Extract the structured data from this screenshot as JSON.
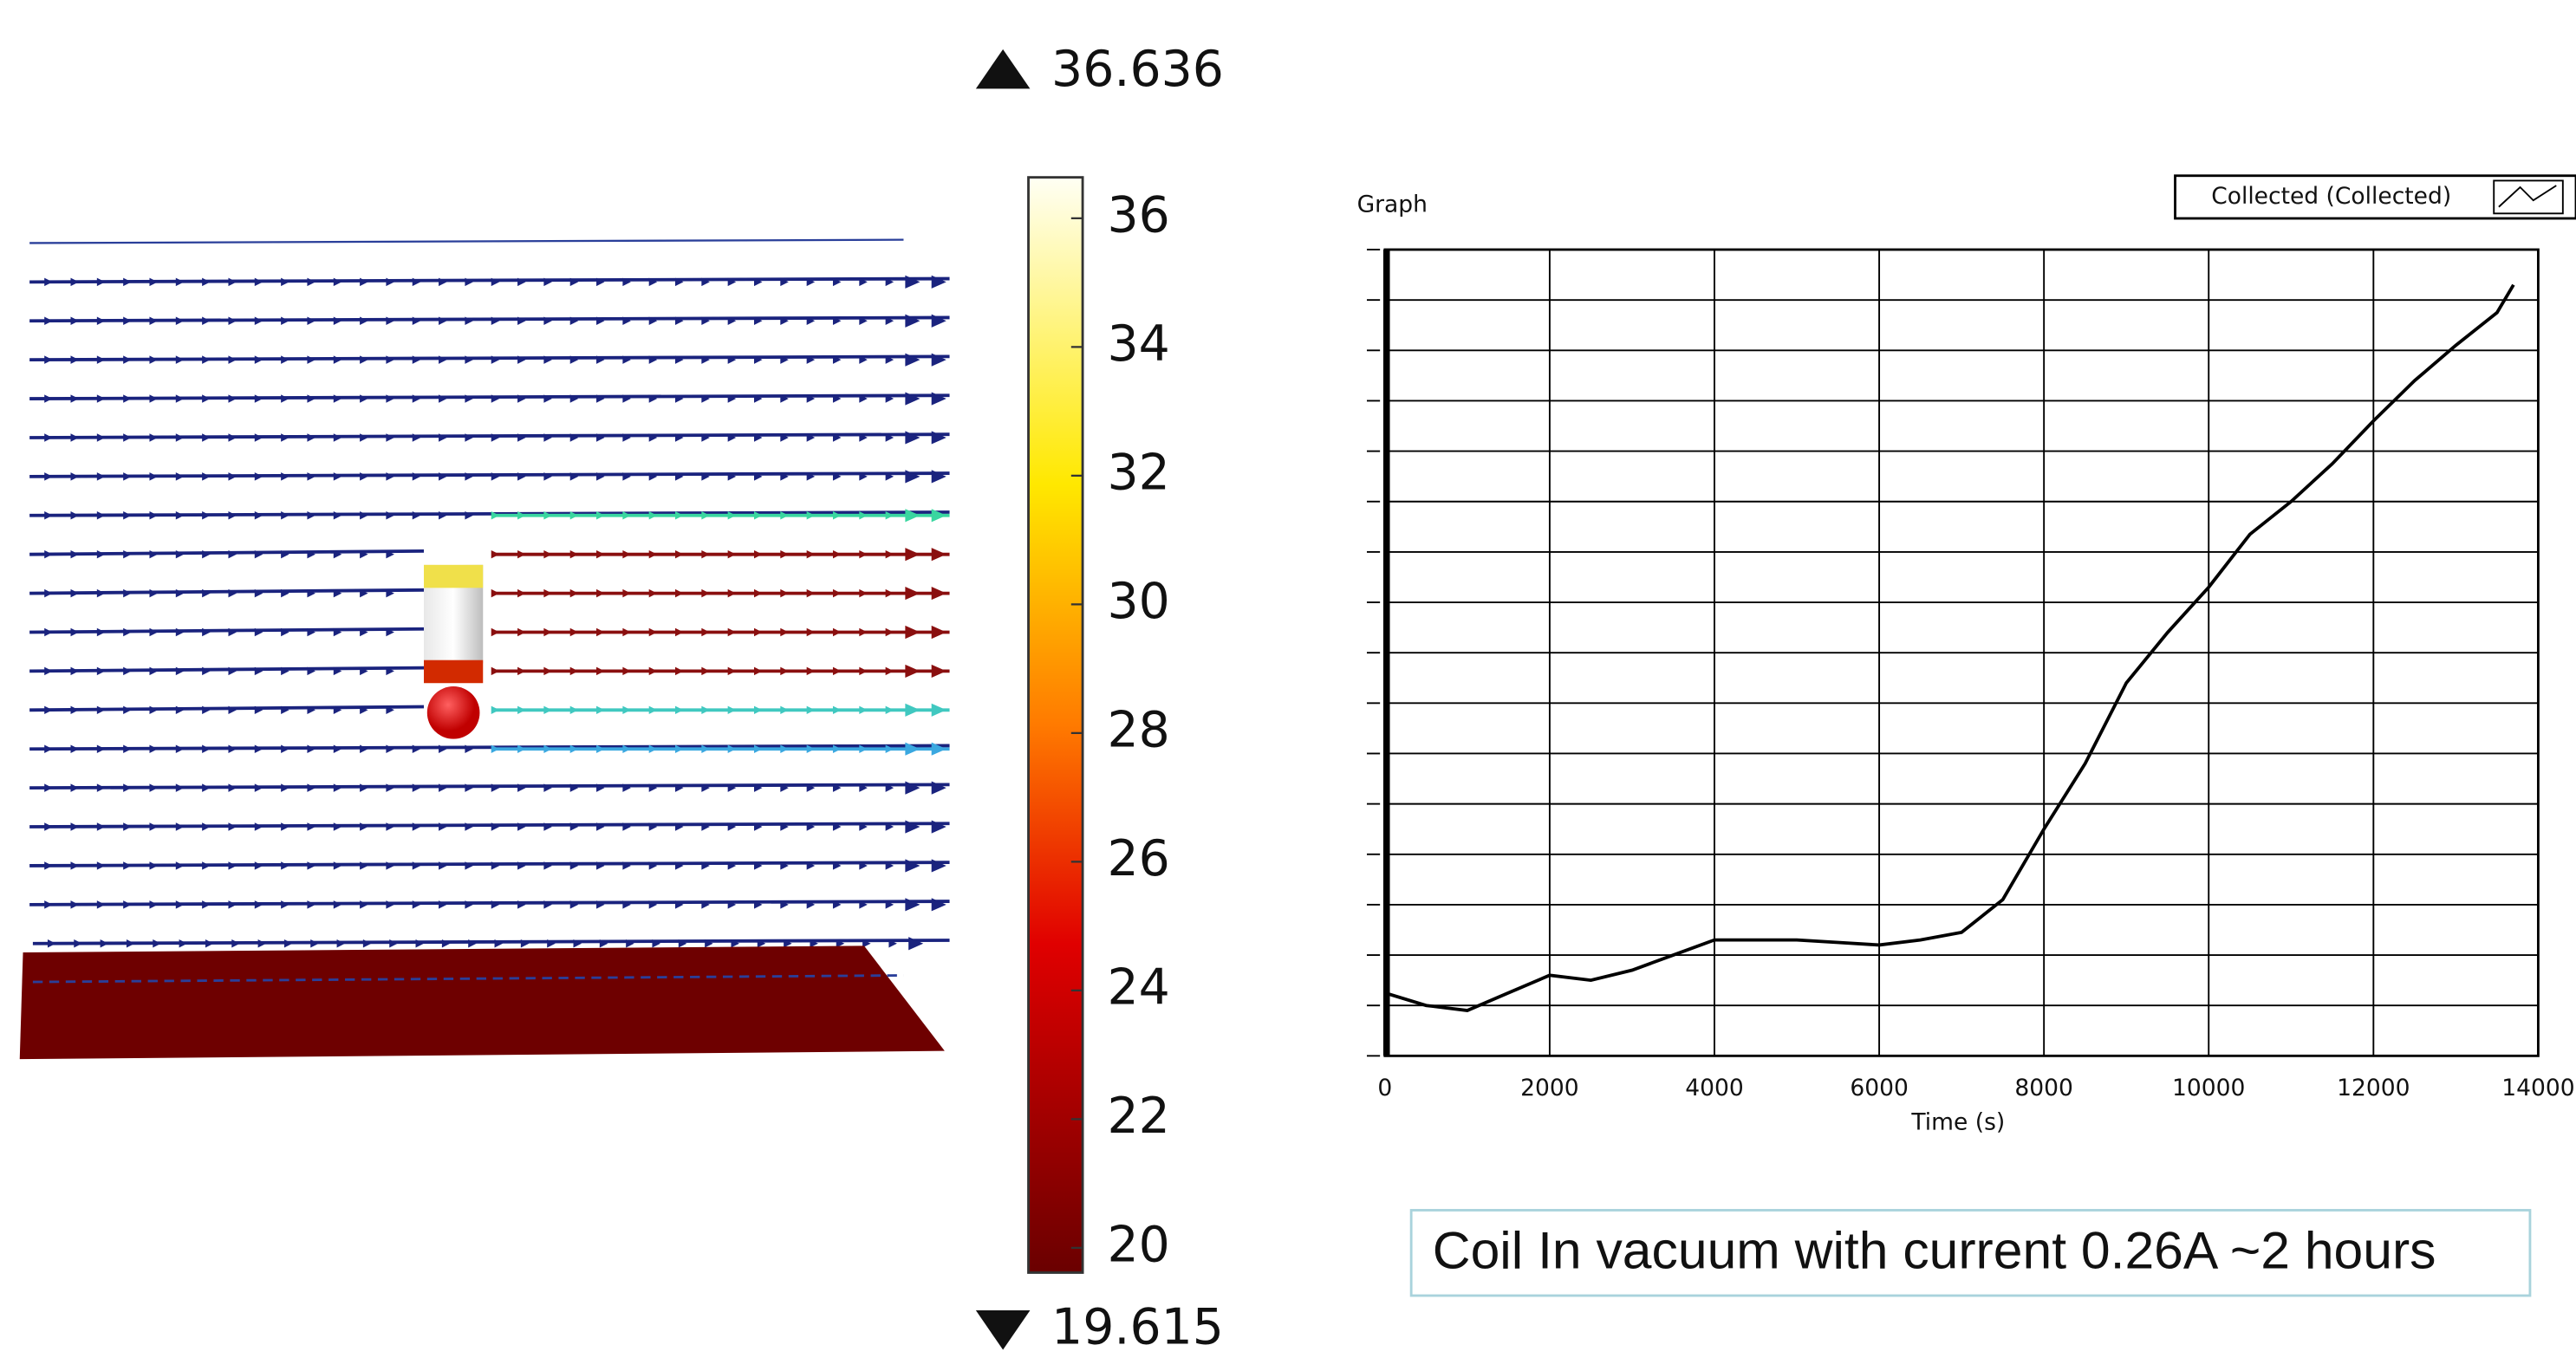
{
  "colorbar": {
    "min": 19.615,
    "max": 36.636,
    "ticks": [
      20,
      22,
      24,
      26,
      28,
      30,
      32,
      34,
      36
    ]
  },
  "chart_data": {
    "type": "line",
    "title": "Graph",
    "xlabel": "Time (s)",
    "x": [
      0,
      500,
      1000,
      1500,
      2000,
      2500,
      3000,
      3500,
      4000,
      4500,
      5000,
      5500,
      6000,
      6500,
      7000,
      7500,
      8000,
      8500,
      9000,
      9500,
      10000,
      10500,
      11000,
      11500,
      12000,
      12500,
      13000,
      13500,
      13700
    ],
    "series": [
      {
        "name": "Collected (Collected)",
        "color": "#000000",
        "values": [
          1.25,
          1.0,
          0.9,
          1.25,
          1.6,
          1.5,
          1.7,
          2.0,
          2.3,
          2.3,
          2.3,
          2.25,
          2.2,
          2.3,
          2.45,
          3.1,
          4.5,
          5.8,
          7.4,
          8.4,
          9.3,
          10.35,
          11.0,
          11.75,
          12.6,
          13.4,
          14.1,
          14.75,
          15.3
        ]
      }
    ],
    "xlim": [
      0,
      14000
    ],
    "xticks": [
      0,
      2000,
      4000,
      6000,
      8000,
      10000,
      12000,
      14000
    ],
    "ylim": [
      0,
      16
    ],
    "yticks": [
      0,
      1,
      2,
      3,
      4,
      5,
      6,
      7,
      8,
      9,
      10,
      11,
      12,
      13,
      14,
      15,
      16
    ],
    "grid": true
  },
  "caption": "Coil In vacuum with current 0.26A ~2 hours"
}
